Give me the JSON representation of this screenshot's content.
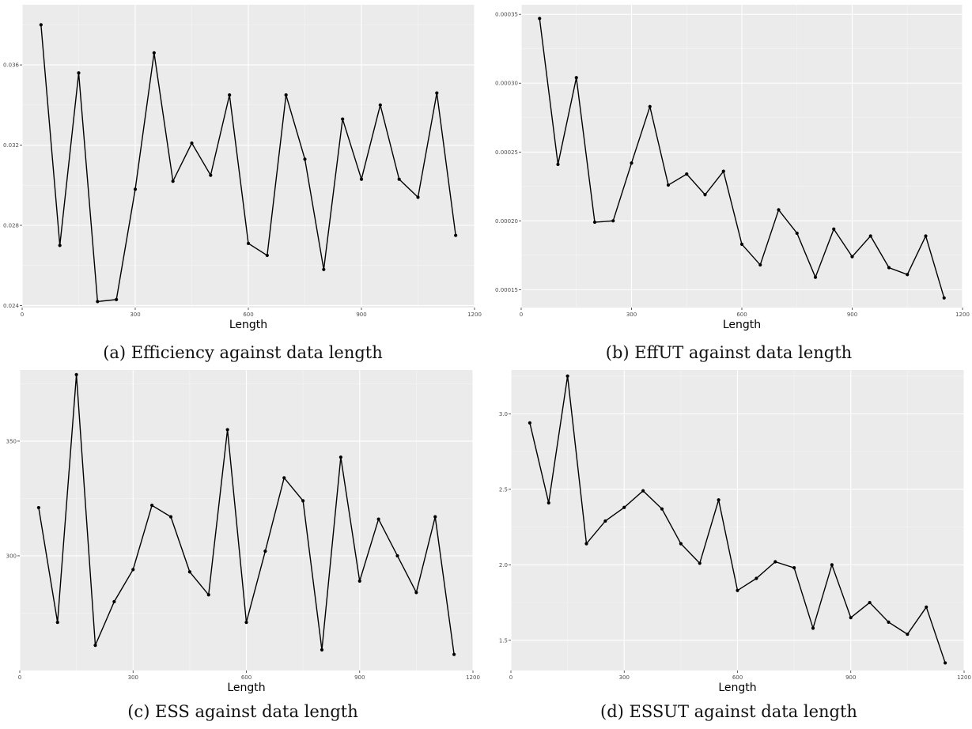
{
  "chart_data": [
    {
      "type": "line",
      "title": "",
      "caption": "(a) Efficiency against data length",
      "xlabel": "Length",
      "ylabel": "",
      "xlim": [
        0,
        1200
      ],
      "ylim": [
        0.0239,
        0.039
      ],
      "xticks": [
        0,
        300,
        600,
        900,
        1200
      ],
      "yticks": [
        0.024,
        0.028,
        0.032,
        0.036
      ],
      "ytick_labels": [
        "0.024",
        "0.028",
        "0.032",
        "0.036"
      ],
      "grid": true,
      "x": [
        50,
        100,
        150,
        200,
        250,
        300,
        350,
        400,
        450,
        500,
        550,
        600,
        650,
        700,
        750,
        800,
        850,
        900,
        950,
        1000,
        1050,
        1100,
        1150
      ],
      "values": [
        0.038,
        0.027,
        0.0356,
        0.0242,
        0.0243,
        0.0298,
        0.0366,
        0.0302,
        0.0321,
        0.0305,
        0.0345,
        0.0271,
        0.0265,
        0.0345,
        0.0313,
        0.0258,
        0.0333,
        0.0303,
        0.034,
        0.0303,
        0.0294,
        0.0346,
        0.0275
      ]
    },
    {
      "type": "line",
      "title": "",
      "caption": "(b) EffUT against data length",
      "xlabel": "Length",
      "ylabel": "",
      "xlim": [
        0,
        1200
      ],
      "ylim": [
        0.000137,
        0.000357
      ],
      "xticks": [
        0,
        300,
        600,
        900,
        1200
      ],
      "yticks": [
        0.00015,
        0.0002,
        0.00025,
        0.0003,
        0.00035
      ],
      "ytick_labels": [
        "0.00015",
        "0.00020",
        "0.00025",
        "0.00030",
        "0.00035"
      ],
      "grid": true,
      "x": [
        50,
        100,
        150,
        200,
        250,
        300,
        350,
        400,
        450,
        500,
        550,
        600,
        650,
        700,
        750,
        800,
        850,
        900,
        950,
        1000,
        1050,
        1100,
        1150
      ],
      "values": [
        0.000347,
        0.000241,
        0.000304,
        0.000199,
        0.0002,
        0.000242,
        0.000283,
        0.000226,
        0.000234,
        0.000219,
        0.000236,
        0.000183,
        0.000168,
        0.000208,
        0.000191,
        0.000159,
        0.000194,
        0.000174,
        0.000189,
        0.000166,
        0.000161,
        0.000189,
        0.000144
      ]
    },
    {
      "type": "line",
      "title": "",
      "caption": "(c) ESS against data length",
      "xlabel": "Length",
      "ylabel": "",
      "xlim": [
        0,
        1200
      ],
      "ylim": [
        250,
        381
      ],
      "xticks": [
        0,
        300,
        600,
        900,
        1200
      ],
      "yticks": [
        300,
        350
      ],
      "ytick_labels": [
        "300",
        "350"
      ],
      "grid": true,
      "x": [
        50,
        100,
        150,
        200,
        250,
        300,
        350,
        400,
        450,
        500,
        550,
        600,
        650,
        700,
        750,
        800,
        850,
        900,
        950,
        1000,
        1050,
        1100,
        1150
      ],
      "values": [
        321,
        271,
        379,
        261,
        280,
        294,
        322,
        317,
        293,
        283,
        355,
        271,
        302,
        334,
        324,
        259,
        343,
        289,
        316,
        300,
        284,
        317,
        257
      ]
    },
    {
      "type": "line",
      "title": "",
      "caption": "(d) ESSUT against data length",
      "xlabel": "Length",
      "ylabel": "",
      "xlim": [
        0,
        1200
      ],
      "ylim": [
        1.3,
        3.29
      ],
      "xticks": [
        0,
        300,
        600,
        900,
        1200
      ],
      "yticks": [
        1.5,
        2.0,
        2.5,
        3.0
      ],
      "ytick_labels": [
        "1.5",
        "2.0",
        "2.5",
        "3.0"
      ],
      "grid": true,
      "x": [
        50,
        100,
        150,
        200,
        250,
        300,
        350,
        400,
        450,
        500,
        550,
        600,
        650,
        700,
        750,
        800,
        850,
        900,
        950,
        1000,
        1050,
        1100,
        1150
      ],
      "values": [
        2.94,
        2.41,
        3.25,
        2.14,
        2.29,
        2.38,
        2.49,
        2.37,
        2.14,
        2.01,
        2.43,
        1.83,
        1.91,
        2.02,
        1.98,
        1.58,
        2.0,
        1.65,
        1.75,
        1.62,
        1.54,
        1.72,
        1.35
      ]
    }
  ]
}
